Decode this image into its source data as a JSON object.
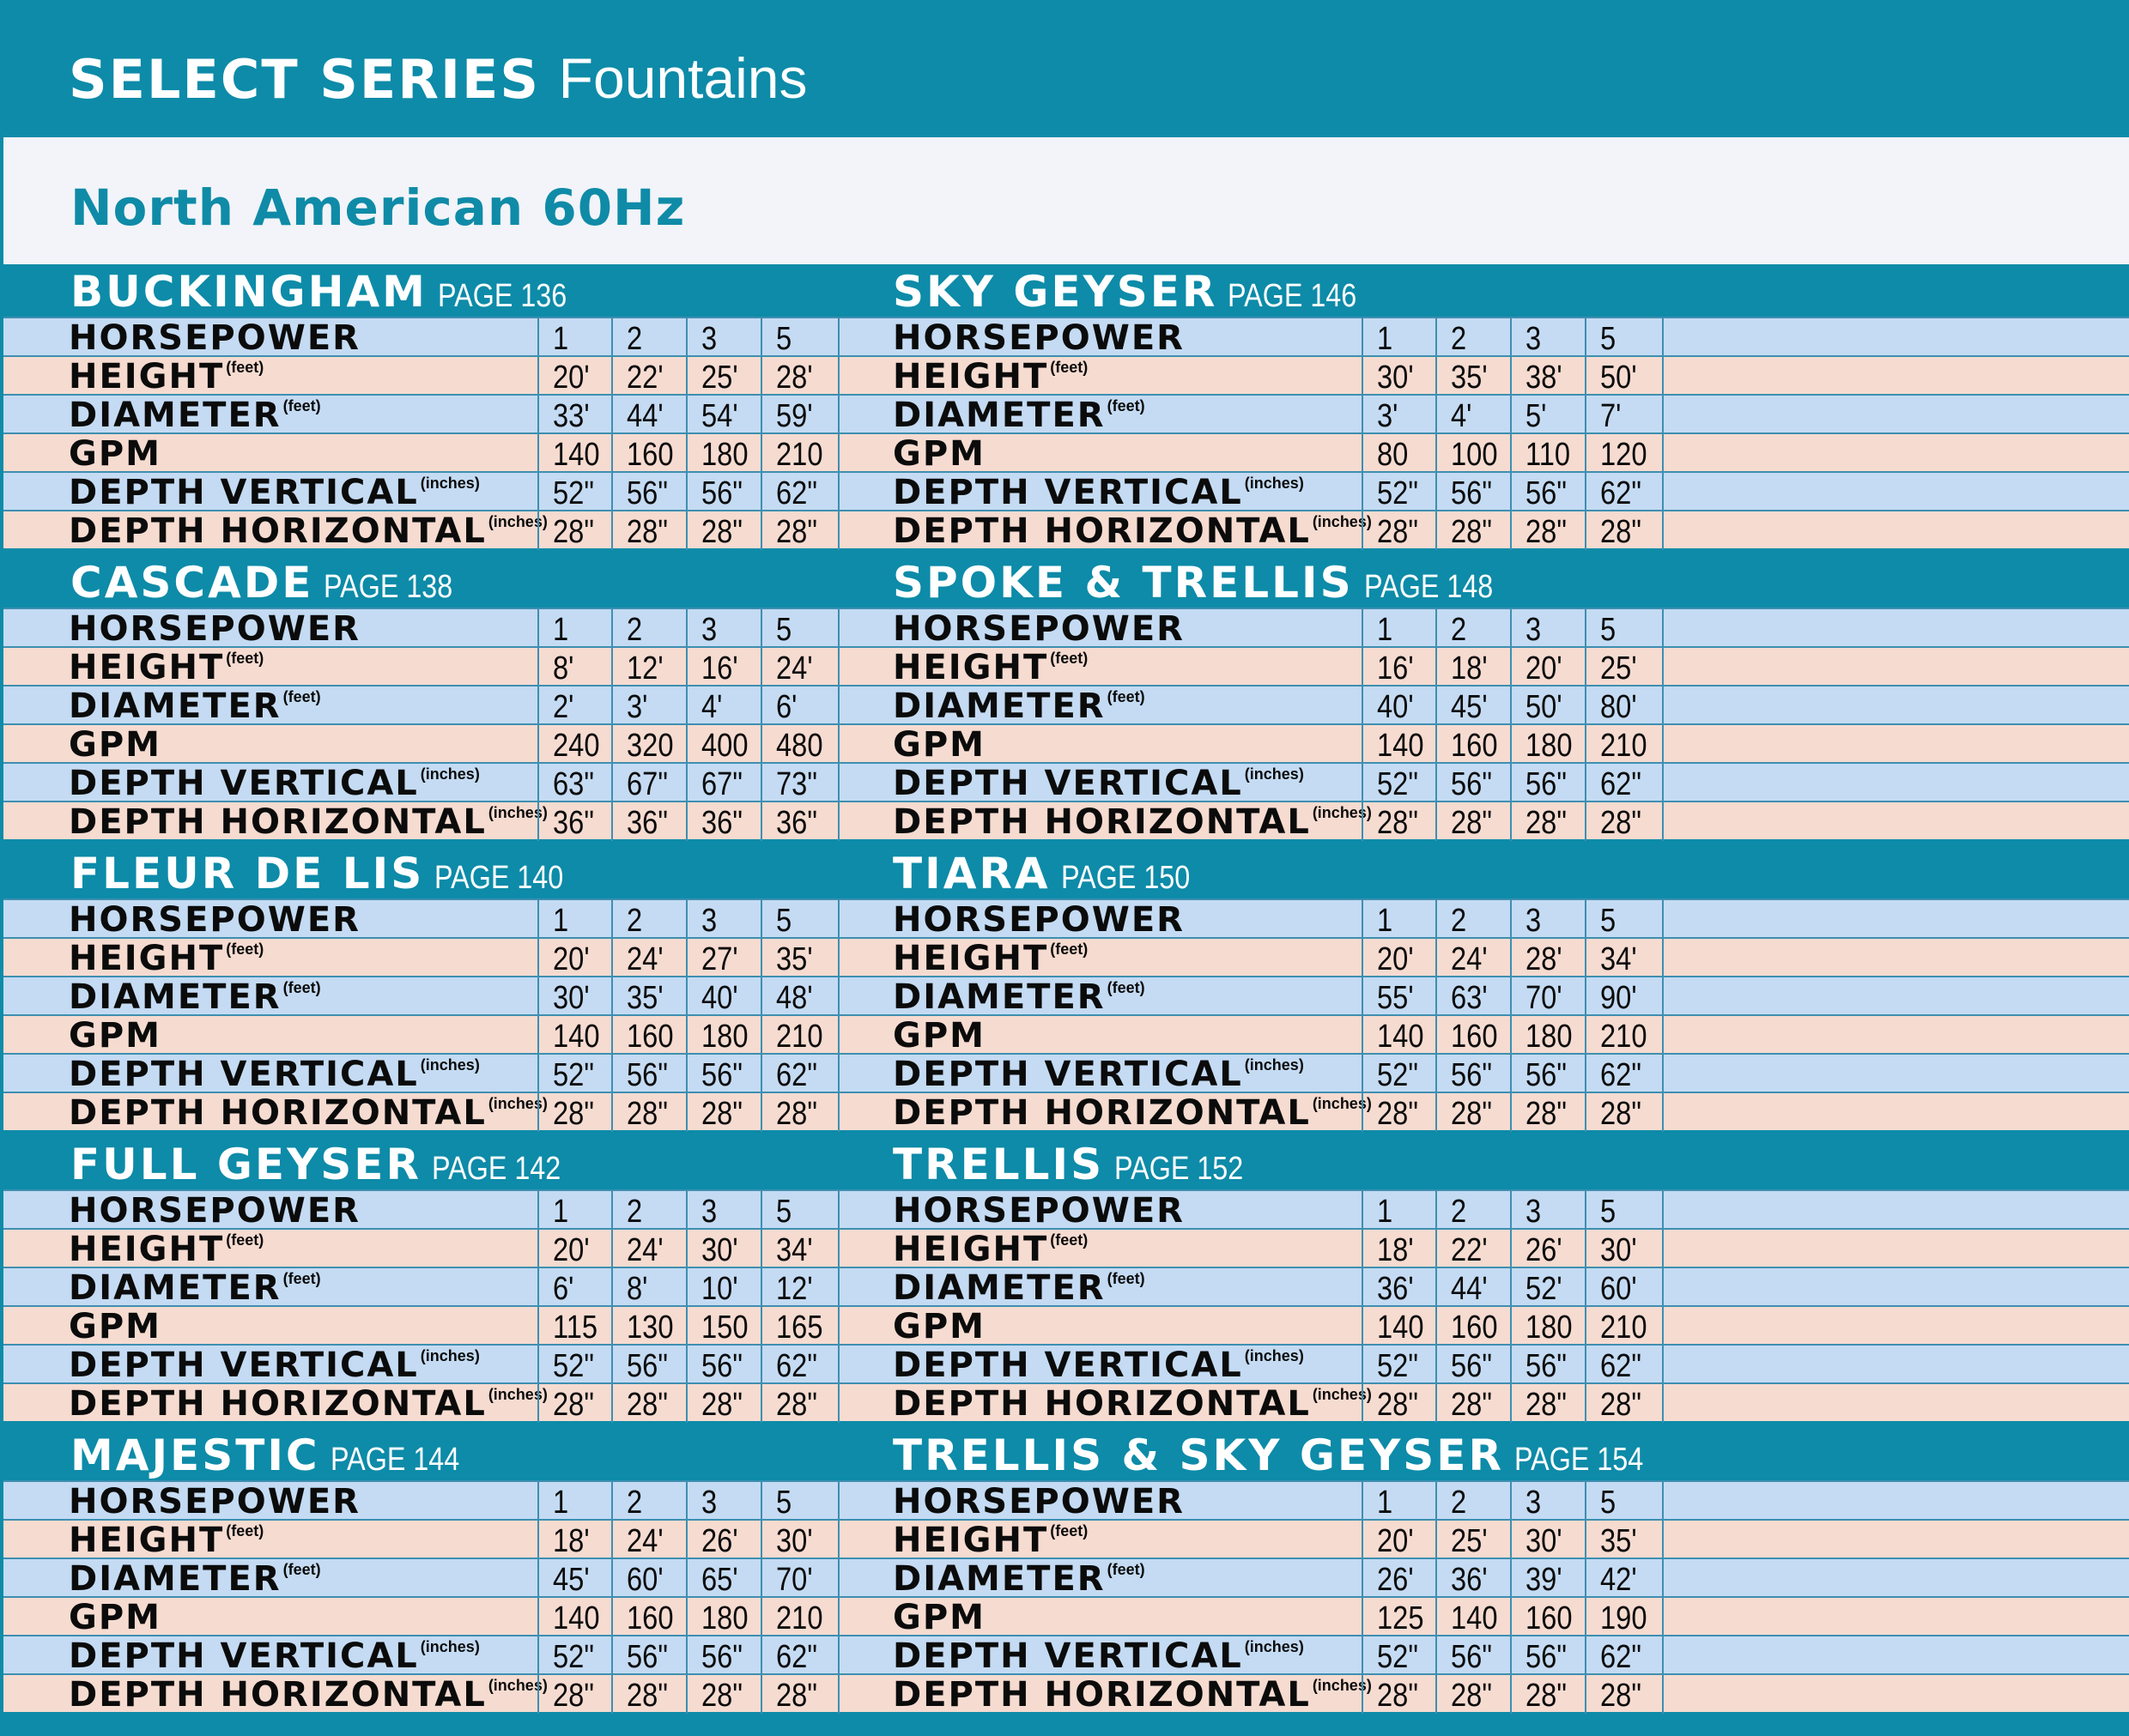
{
  "header": {
    "title_bold": "SELECT SERIES",
    "title_light": "Fountains"
  },
  "subheader": {
    "title": "North American 60Hz"
  },
  "row_labels": [
    {
      "text": "HORSEPOWER",
      "unit": ""
    },
    {
      "text": "HEIGHT",
      "unit": "(feet)"
    },
    {
      "text": "DIAMETER",
      "unit": "(feet)"
    },
    {
      "text": "GPM",
      "unit": ""
    },
    {
      "text": "DEPTH VERTICAL",
      "unit": "(inches)"
    },
    {
      "text": "DEPTH HORIZONTAL",
      "unit": "(inches)"
    }
  ],
  "colors": {
    "header": "#0d8ba8",
    "row_blue": "#c4dbf3",
    "row_peach": "#f6dbd0",
    "grid_line": "#3e8fb1",
    "subheader_text": "#0f8ba7"
  },
  "products": [
    {
      "name": "BUCKINGHAM",
      "page": "PAGE 136",
      "values": [
        [
          "1",
          "2",
          "3",
          "5"
        ],
        [
          "20'",
          "22'",
          "25'",
          "28'"
        ],
        [
          "33'",
          "44'",
          "54'",
          "59'"
        ],
        [
          "140",
          "160",
          "180",
          "210"
        ],
        [
          "52\"",
          "56\"",
          "56\"",
          "62\""
        ],
        [
          "28\"",
          "28\"",
          "28\"",
          "28\""
        ]
      ]
    },
    {
      "name": "SKY GEYSER",
      "page": "PAGE 146",
      "values": [
        [
          "1",
          "2",
          "3",
          "5"
        ],
        [
          "30'",
          "35'",
          "38'",
          "50'"
        ],
        [
          "3'",
          "4'",
          "5'",
          "7'"
        ],
        [
          "80",
          "100",
          "110",
          "120"
        ],
        [
          "52\"",
          "56\"",
          "56\"",
          "62\""
        ],
        [
          "28\"",
          "28\"",
          "28\"",
          "28\""
        ]
      ]
    },
    {
      "name": "CASCADE",
      "page": "PAGE 138",
      "values": [
        [
          "1",
          "2",
          "3",
          "5"
        ],
        [
          "8'",
          "12'",
          "16'",
          "24'"
        ],
        [
          "2'",
          "3'",
          "4'",
          "6'"
        ],
        [
          "240",
          "320",
          "400",
          "480"
        ],
        [
          "63\"",
          "67\"",
          "67\"",
          "73\""
        ],
        [
          "36\"",
          "36\"",
          "36\"",
          "36\""
        ]
      ]
    },
    {
      "name": "SPOKE & TRELLIS",
      "page": "PAGE 148",
      "values": [
        [
          "1",
          "2",
          "3",
          "5"
        ],
        [
          "16'",
          "18'",
          "20'",
          "25'"
        ],
        [
          "40'",
          "45'",
          "50'",
          "80'"
        ],
        [
          "140",
          "160",
          "180",
          "210"
        ],
        [
          "52\"",
          "56\"",
          "56\"",
          "62\""
        ],
        [
          "28\"",
          "28\"",
          "28\"",
          "28\""
        ]
      ]
    },
    {
      "name": "FLEUR DE LIS",
      "page": "PAGE 140",
      "values": [
        [
          "1",
          "2",
          "3",
          "5"
        ],
        [
          "20'",
          "24'",
          "27'",
          "35'"
        ],
        [
          "30'",
          "35'",
          "40'",
          "48'"
        ],
        [
          "140",
          "160",
          "180",
          "210"
        ],
        [
          "52\"",
          "56\"",
          "56\"",
          "62\""
        ],
        [
          "28\"",
          "28\"",
          "28\"",
          "28\""
        ]
      ]
    },
    {
      "name": "TIARA",
      "page": "PAGE 150",
      "values": [
        [
          "1",
          "2",
          "3",
          "5"
        ],
        [
          "20'",
          "24'",
          "28'",
          "34'"
        ],
        [
          "55'",
          "63'",
          "70'",
          "90'"
        ],
        [
          "140",
          "160",
          "180",
          "210"
        ],
        [
          "52\"",
          "56\"",
          "56\"",
          "62\""
        ],
        [
          "28\"",
          "28\"",
          "28\"",
          "28\""
        ]
      ]
    },
    {
      "name": "FULL GEYSER",
      "page": "PAGE 142",
      "values": [
        [
          "1",
          "2",
          "3",
          "5"
        ],
        [
          "20'",
          "24'",
          "30'",
          "34'"
        ],
        [
          "6'",
          "8'",
          "10'",
          "12'"
        ],
        [
          "115",
          "130",
          "150",
          "165"
        ],
        [
          "52\"",
          "56\"",
          "56\"",
          "62\""
        ],
        [
          "28\"",
          "28\"",
          "28\"",
          "28\""
        ]
      ]
    },
    {
      "name": "TRELLIS",
      "page": "PAGE 152",
      "values": [
        [
          "1",
          "2",
          "3",
          "5"
        ],
        [
          "18'",
          "22'",
          "26'",
          "30'"
        ],
        [
          "36'",
          "44'",
          "52'",
          "60'"
        ],
        [
          "140",
          "160",
          "180",
          "210"
        ],
        [
          "52\"",
          "56\"",
          "56\"",
          "62\""
        ],
        [
          "28\"",
          "28\"",
          "28\"",
          "28\""
        ]
      ]
    },
    {
      "name": "MAJESTIC",
      "page": "PAGE 144",
      "values": [
        [
          "1",
          "2",
          "3",
          "5"
        ],
        [
          "18'",
          "24'",
          "26'",
          "30'"
        ],
        [
          "45'",
          "60'",
          "65'",
          "70'"
        ],
        [
          "140",
          "160",
          "180",
          "210"
        ],
        [
          "52\"",
          "56\"",
          "56\"",
          "62\""
        ],
        [
          "28\"",
          "28\"",
          "28\"",
          "28\""
        ]
      ]
    },
    {
      "name": "TRELLIS & SKY GEYSER",
      "page": "PAGE 154",
      "values": [
        [
          "1",
          "2",
          "3",
          "5"
        ],
        [
          "20'",
          "25'",
          "30'",
          "35'"
        ],
        [
          "26'",
          "36'",
          "39'",
          "42'"
        ],
        [
          "125",
          "140",
          "160",
          "190"
        ],
        [
          "52\"",
          "56\"",
          "56\"",
          "62\""
        ],
        [
          "28\"",
          "28\"",
          "28\"",
          "28\""
        ]
      ]
    }
  ]
}
